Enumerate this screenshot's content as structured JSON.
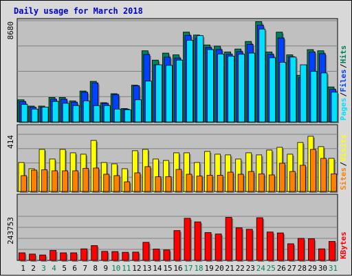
{
  "chart_data": {
    "type": "bar",
    "title": "Daily usage for March 2018",
    "categories": [
      "1",
      "2",
      "3",
      "4",
      "5",
      "6",
      "7",
      "8",
      "9",
      "10",
      "11",
      "12",
      "13",
      "14",
      "15",
      "16",
      "17",
      "18",
      "19",
      "20",
      "21",
      "22",
      "23",
      "24",
      "25",
      "26",
      "27",
      "28",
      "29",
      "30",
      "31"
    ],
    "weekend_days": [
      "3",
      "4",
      "10",
      "11",
      "17",
      "18",
      "24",
      "25",
      "31"
    ],
    "colors": {
      "title": "#0000cc",
      "hits": "#00805c",
      "files": "#0040ff",
      "pages": "#00e0ff",
      "visits": "#ffff00",
      "sites": "#ff8000",
      "kbytes": "#ff0000",
      "plot_background": "#c0c0c0",
      "frame_background": "#d8d8d8",
      "weekday_label": "#000000",
      "weekend_label": "#00805c"
    },
    "panels": [
      {
        "name": "hits-files-pages",
        "ymax_label": "8680",
        "ymax": 8680,
        "legend": [
          "Pages",
          "Files",
          "Hits"
        ],
        "series": [
          {
            "name": "Hits",
            "values": [
              1900,
              1360,
              1360,
              2100,
              2100,
              1800,
              2650,
              3480,
              1650,
              2420,
              1150,
              3150,
              6100,
              5300,
              5900,
              5750,
              7700,
              7450,
              6600,
              6500,
              6000,
              6250,
              6900,
              8600,
              6000,
              7700,
              5750,
              4000,
              6200,
              6100,
              3000
            ]
          },
          {
            "name": "Files",
            "values": [
              1760,
              1270,
              1270,
              1950,
              1950,
              1700,
              2550,
              3350,
              1600,
              2360,
              1100,
              3100,
              5780,
              4900,
              5560,
              5480,
              7420,
              7200,
              6380,
              6200,
              5800,
              6030,
              6650,
              8300,
              5800,
              7200,
              5600,
              3800,
              6000,
              5850,
              2800
            ]
          },
          {
            "name": "Pages",
            "values": [
              1500,
              1100,
              1270,
              1760,
              1600,
              1400,
              1800,
              1400,
              1400,
              1100,
              1050,
              1900,
              3500,
              4900,
              4850,
              5300,
              7000,
              7400,
              6200,
              5820,
              5630,
              5800,
              5900,
              7960,
              5500,
              5100,
              5560,
              4900,
              4330,
              4200,
              2550
            ]
          }
        ]
      },
      {
        "name": "visits-sites",
        "ymax_label": "414",
        "ymax": 414,
        "legend": [
          "Sites",
          "Visits"
        ],
        "series": [
          {
            "name": "Visits",
            "values": [
              210,
              165,
              305,
              235,
              305,
              280,
              270,
              370,
              210,
              200,
              165,
              295,
              305,
              235,
              225,
              280,
              280,
              210,
              290,
              270,
              265,
              235,
              280,
              265,
              300,
              320,
              270,
              355,
              400,
              325,
              240
            ]
          },
          {
            "name": "Sites",
            "values": [
              115,
              155,
              158,
              150,
              150,
              150,
              168,
              170,
              125,
              115,
              70,
              135,
              180,
              107,
              108,
              160,
              125,
              112,
              118,
              118,
              140,
              125,
              145,
              128,
              120,
              205,
              145,
              190,
              305,
              240,
              128
            ]
          }
        ]
      },
      {
        "name": "kbytes",
        "ymax_label": "243753",
        "ymax": 243753,
        "legend": [
          "KBytes"
        ],
        "series": [
          {
            "name": "KBytes",
            "values": [
              42000,
              35000,
              30000,
              55000,
              42000,
              42000,
              64000,
              82000,
              50000,
              49000,
              45000,
              46000,
              100000,
              63000,
              58000,
              165000,
              233000,
              213000,
              154000,
              146000,
              238000,
              180000,
              172000,
              236000,
              157000,
              152000,
              92000,
              122000,
              120000,
              64000,
              105000
            ]
          }
        ]
      }
    ]
  }
}
